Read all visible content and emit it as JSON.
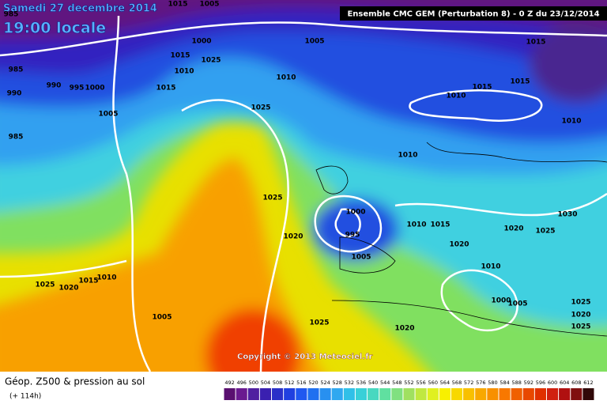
{
  "header": {
    "date": "Samedi 27 decembre 2014",
    "time": "19:00 locale",
    "model": "Ensemble CMC GEM (Perturbation 8) - 0 Z du 23/12/2014"
  },
  "copyright": "Copyright © 2013 Meteociel.fr",
  "footer": {
    "title": "Géop. Z500 & pression au sol",
    "lead": "(+ 114h)"
  },
  "isobar_labels": [
    "1015",
    "1005",
    "985",
    "1005",
    "1000",
    "1025",
    "1010",
    "1015",
    "985",
    "990",
    "990",
    "995",
    "1000",
    "1015",
    "1005",
    "1010",
    "1015",
    "1015",
    "1015",
    "1010",
    "1025",
    "1010",
    "985",
    "1010",
    "1025",
    "1000",
    "995",
    "1010",
    "1015",
    "1030",
    "1020",
    "1025",
    "1020",
    "1020",
    "1005",
    "1010",
    "1010",
    "1015",
    "1020",
    "1025",
    "1000",
    "1005",
    "1025",
    "1005",
    "1025",
    "1025",
    "1020",
    "1020"
  ],
  "legend": {
    "labels": [
      "492",
      "496",
      "500",
      "504",
      "508",
      "512",
      "516",
      "520",
      "524",
      "528",
      "532",
      "536",
      "540",
      "544",
      "548",
      "552",
      "556",
      "560",
      "564",
      "568",
      "572",
      "576",
      "580",
      "584",
      "588",
      "592",
      "596",
      "600",
      "604",
      "608",
      "612"
    ],
    "colors": [
      "#5a1070",
      "#6a1a90",
      "#5020a0",
      "#3a20b0",
      "#2a30c8",
      "#2040e0",
      "#2058f0",
      "#2070f0",
      "#2890f0",
      "#30a8f0",
      "#30c0e8",
      "#38d0d8",
      "#48d8c0",
      "#60e0a0",
      "#80e080",
      "#a0e060",
      "#c0e840",
      "#e0f020",
      "#f8f000",
      "#f8d800",
      "#f8c000",
      "#f8a800",
      "#f89000",
      "#f87800",
      "#f06000",
      "#e84800",
      "#e03000",
      "#d02010",
      "#b01010",
      "#801010",
      "#300808"
    ]
  }
}
